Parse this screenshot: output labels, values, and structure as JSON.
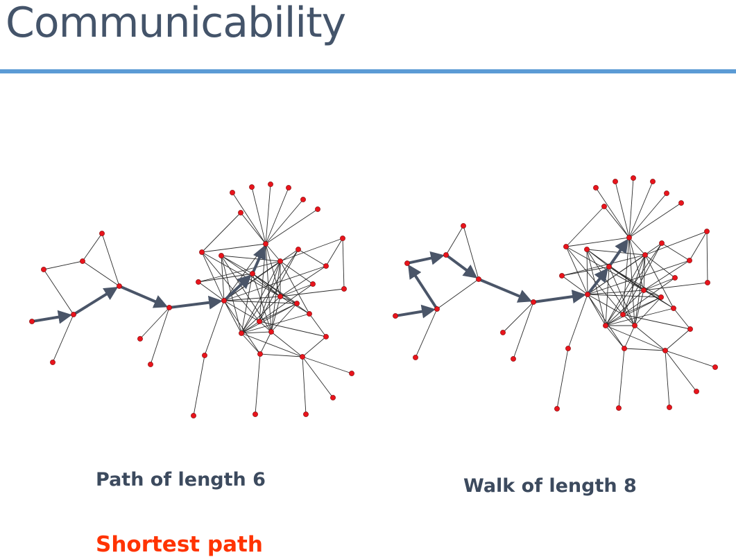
{
  "slide": {
    "title": "Communicability",
    "left_caption": "Path of length 6",
    "right_caption": "Walk of length 8",
    "bottom_label": "Shortest path"
  },
  "colors": {
    "title": "#44546a",
    "rule": "#5b9bd5",
    "node": "#e8141c",
    "edge": "#2a2a2a",
    "arrow": "#4a5568",
    "highlight_label": "#ff3300"
  }
}
